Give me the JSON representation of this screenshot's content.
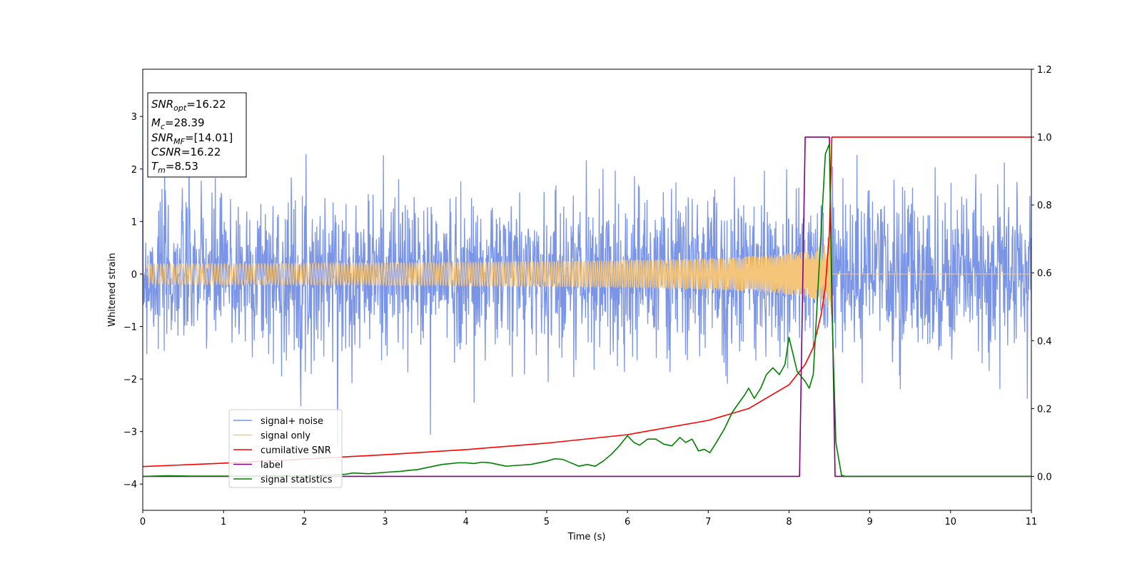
{
  "chart_data": {
    "type": "line",
    "xlabel": "Time (s)",
    "ylabel": "Whitened strain",
    "xlim": [
      0,
      11
    ],
    "ylim": [
      -4.5,
      3.9
    ],
    "y2lim": [
      -0.1,
      1.2
    ],
    "x_ticks": [
      "0",
      "1",
      "2",
      "3",
      "4",
      "5",
      "6",
      "7",
      "8",
      "9",
      "10",
      "11"
    ],
    "y_ticks": [
      "−4",
      "−3",
      "−2",
      "−1",
      "0",
      "1",
      "2",
      "3"
    ],
    "y2_ticks": [
      "0.0",
      "0.2",
      "0.4",
      "0.6",
      "0.8",
      "1.0",
      "1.2"
    ],
    "legend_position": "lower-left",
    "grid": false,
    "info_box": {
      "snr_opt": {
        "base": "SNR",
        "sub": "opt",
        "value": "=16.22"
      },
      "mc": {
        "base": "M",
        "sub": "c",
        "value": "=28.39"
      },
      "snr_mf": {
        "base": "SNR",
        "sub": "MF",
        "value": "=[14.01]"
      },
      "csnr": {
        "base": "CSNR",
        "sub": "",
        "value": "=16.22"
      },
      "tm": {
        "base": "T",
        "sub": "m",
        "value": "=8.53"
      }
    },
    "series": [
      {
        "name": "signal+ noise",
        "color": "#7b95e6",
        "axis": "left",
        "kind": "noise",
        "sigma": 0.75,
        "samples": 2400,
        "merger_time": 8.53
      },
      {
        "name": "signal only",
        "color": "#f5c57a",
        "axis": "left",
        "kind": "chirp",
        "merger_time": 8.53,
        "peak_amplitude": 1.0
      },
      {
        "name": "cumilative SNR",
        "color": "#ff0000",
        "axis": "right",
        "x": [
          0,
          1,
          2,
          3,
          4,
          5,
          6,
          7,
          7.5,
          8,
          8.2,
          8.3,
          8.4,
          8.45,
          8.5,
          8.53,
          8.55,
          11
        ],
        "y": [
          0.029,
          0.039,
          0.051,
          0.064,
          0.079,
          0.098,
          0.123,
          0.165,
          0.2,
          0.27,
          0.33,
          0.38,
          0.48,
          0.56,
          0.72,
          1.0,
          1.0,
          1.0
        ]
      },
      {
        "name": "label",
        "color": "#800080",
        "axis": "right",
        "x": [
          0,
          8.13,
          8.2,
          8.5,
          8.57,
          11
        ],
        "y": [
          0.0,
          0.0,
          1.0,
          1.0,
          0.0,
          0.0
        ]
      },
      {
        "name": "signal statistics",
        "color": "#008000",
        "axis": "right",
        "x": [
          0,
          0.3,
          0.6,
          1.0,
          1.5,
          2.0,
          2.3,
          2.5,
          2.6,
          2.8,
          3.0,
          3.2,
          3.3,
          3.4,
          3.5,
          3.6,
          3.7,
          3.9,
          4.0,
          4.1,
          4.2,
          4.3,
          4.5,
          4.6,
          4.8,
          4.9,
          5.0,
          5.1,
          5.2,
          5.3,
          5.4,
          5.5,
          5.6,
          5.7,
          5.8,
          5.9,
          6.0,
          6.08,
          6.15,
          6.25,
          6.35,
          6.45,
          6.55,
          6.65,
          6.72,
          6.8,
          6.88,
          6.95,
          7.02,
          7.1,
          7.2,
          7.3,
          7.45,
          7.5,
          7.57,
          7.65,
          7.72,
          7.8,
          7.88,
          7.95,
          8.0,
          8.1,
          8.2,
          8.25,
          8.3,
          8.45,
          8.5,
          8.53,
          8.58,
          8.65,
          8.7,
          11
        ],
        "y": [
          0.0,
          0.002,
          0.001,
          0.001,
          0.001,
          0.002,
          0.004,
          0.006,
          0.01,
          0.008,
          0.012,
          0.015,
          0.018,
          0.02,
          0.025,
          0.03,
          0.035,
          0.04,
          0.04,
          0.038,
          0.042,
          0.04,
          0.03,
          0.032,
          0.035,
          0.04,
          0.045,
          0.052,
          0.05,
          0.04,
          0.03,
          0.035,
          0.03,
          0.045,
          0.065,
          0.09,
          0.12,
          0.1,
          0.092,
          0.11,
          0.11,
          0.095,
          0.09,
          0.115,
          0.1,
          0.11,
          0.075,
          0.08,
          0.07,
          0.1,
          0.14,
          0.19,
          0.24,
          0.26,
          0.23,
          0.26,
          0.3,
          0.32,
          0.3,
          0.33,
          0.41,
          0.31,
          0.28,
          0.26,
          0.3,
          0.95,
          0.98,
          0.5,
          0.1,
          0.003,
          0.0,
          0.0
        ]
      }
    ]
  }
}
